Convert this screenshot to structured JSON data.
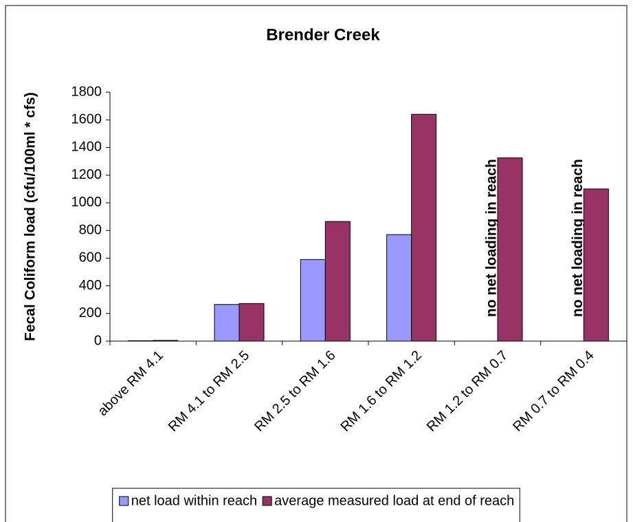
{
  "chart_data": {
    "type": "bar",
    "title": "Brender Creek",
    "y_label": "Fecal Coliform load (cfu/100ml * cfs)",
    "categories": [
      "above RM 4.1",
      "RM 4.1 to RM 2.5",
      "RM 2.5 to RM 1.6",
      "RM 1.6 to RM 1.2",
      "RM 1.2 to RM 0.7",
      "RM 0.7 to RM 0.4"
    ],
    "series": [
      {
        "name": "net load within reach",
        "color": "#9999ff",
        "values": [
          3,
          265,
          590,
          770,
          null,
          null
        ]
      },
      {
        "name": "average measured load at end of reach",
        "color": "#993366",
        "values": [
          5,
          272,
          865,
          1640,
          1325,
          1100
        ]
      }
    ],
    "annotations": [
      "no net loading in reach",
      "no net loading in reach"
    ],
    "ylim": [
      0,
      1800
    ],
    "yticks": [
      0,
      200,
      400,
      600,
      800,
      1000,
      1200,
      1400,
      1600,
      1800
    ],
    "grid": false
  }
}
